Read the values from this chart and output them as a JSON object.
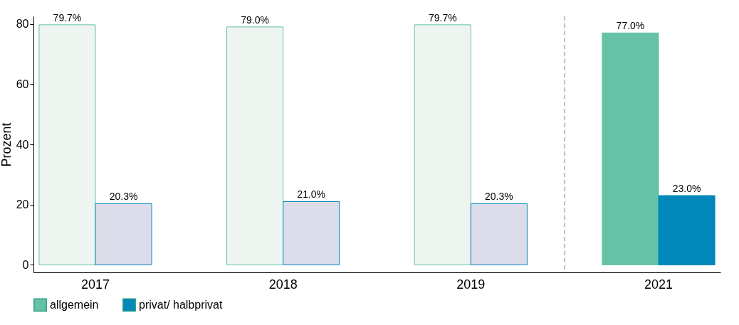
{
  "chart_data": {
    "type": "bar",
    "ylabel": "Prozent",
    "categories": [
      "2017",
      "2018",
      "2019",
      "2021"
    ],
    "series": [
      {
        "name": "allgemein",
        "color": "#66c2a5",
        "colors": [
          "#eef4f0",
          "#eef4f0",
          "#eef4f0",
          "#66c2a5"
        ],
        "values": [
          79.7,
          79.0,
          79.7,
          77.0
        ],
        "value_labels": [
          "79.7%",
          "79.0%",
          "79.7%",
          "77.0%"
        ]
      },
      {
        "name": "privat/ halbprivat",
        "color": "#0088bb",
        "colors": [
          "#dcdcea",
          "#dcdcea",
          "#dcdcea",
          "#0088bb"
        ],
        "values": [
          20.3,
          21.0,
          20.3,
          23.0
        ],
        "value_labels": [
          "20.3%",
          "21.0%",
          "20.3%",
          "23.0%"
        ]
      }
    ],
    "ylim": [
      -2.5,
      82.5
    ],
    "yticks": [
      0,
      20,
      40,
      60,
      80
    ],
    "grid": false,
    "legend": "bottom"
  }
}
